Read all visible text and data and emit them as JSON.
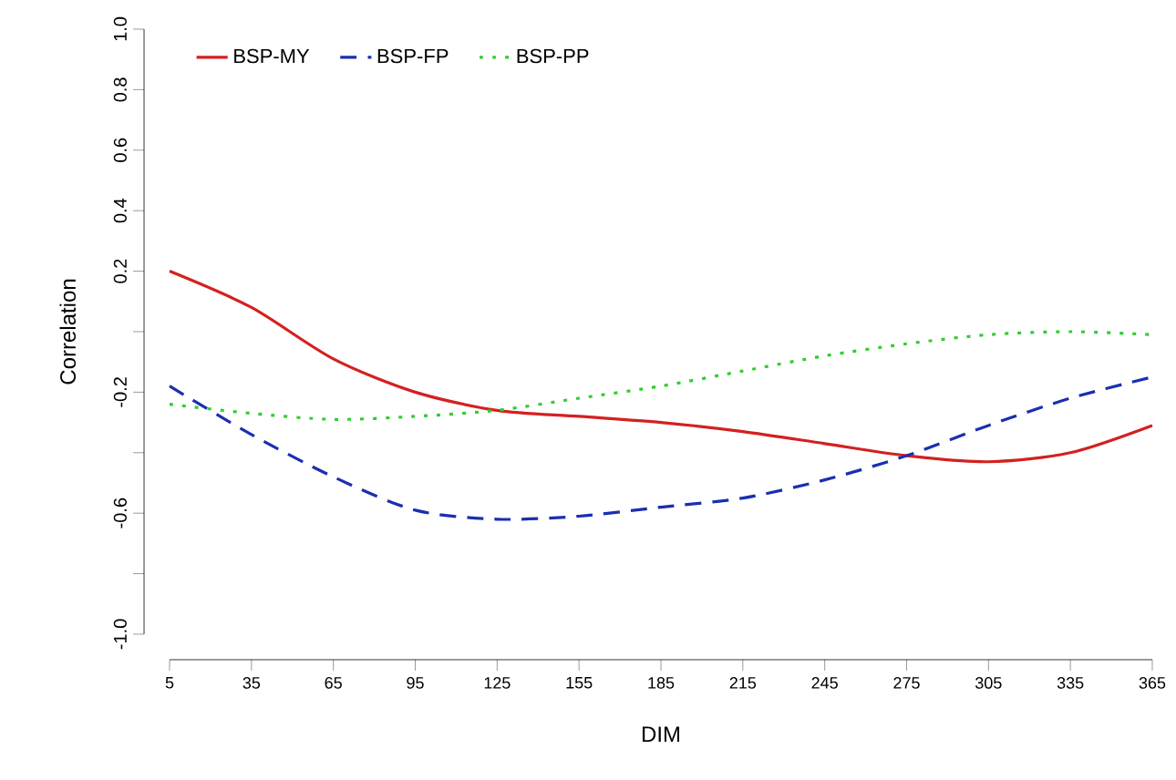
{
  "chart_data": {
    "type": "line",
    "xlabel": "DIM",
    "ylabel": "Correlation",
    "x": [
      5,
      35,
      65,
      95,
      125,
      155,
      185,
      215,
      245,
      275,
      305,
      335,
      365
    ],
    "xlim": [
      5,
      365
    ],
    "xticks": [
      5,
      35,
      65,
      95,
      125,
      155,
      185,
      215,
      245,
      275,
      305,
      335,
      365
    ],
    "ylim": [
      -1.0,
      1.0
    ],
    "yticks": [
      {
        "value": -1.0,
        "label": "-1.0"
      },
      {
        "value": -0.8,
        "label": null
      },
      {
        "value": -0.6,
        "label": "-0.6"
      },
      {
        "value": -0.4,
        "label": null
      },
      {
        "value": -0.2,
        "label": "-0.2"
      },
      {
        "value": 0,
        "label": null
      },
      {
        "value": 0.2,
        "label": "0.2"
      },
      {
        "value": 0.4,
        "label": "0.4"
      },
      {
        "value": 0.6,
        "label": "0.6"
      },
      {
        "value": 0.8,
        "label": "0.8"
      },
      {
        "value": 1.0,
        "label": "1.0"
      }
    ],
    "grid": false,
    "legend": "top left",
    "series": [
      {
        "name": "BSP-MY",
        "color": "#d42020",
        "line_style": "solid",
        "values": [
          0.2,
          0.08,
          -0.09,
          -0.2,
          -0.26,
          -0.28,
          -0.3,
          -0.33,
          -0.37,
          -0.41,
          -0.43,
          -0.4,
          -0.31
        ]
      },
      {
        "name": "BSP-FP",
        "color": "#1a2fb0",
        "line_style": "dashed",
        "values": [
          -0.18,
          -0.34,
          -0.48,
          -0.59,
          -0.62,
          -0.61,
          -0.58,
          -0.55,
          -0.49,
          -0.41,
          -0.31,
          -0.22,
          -0.15
        ]
      },
      {
        "name": "BSP-PP",
        "color": "#33cc33",
        "line_style": "dotted",
        "values": [
          -0.24,
          -0.27,
          -0.29,
          -0.28,
          -0.26,
          -0.22,
          -0.18,
          -0.13,
          -0.08,
          -0.04,
          -0.01,
          0.0,
          -0.01
        ]
      }
    ]
  }
}
